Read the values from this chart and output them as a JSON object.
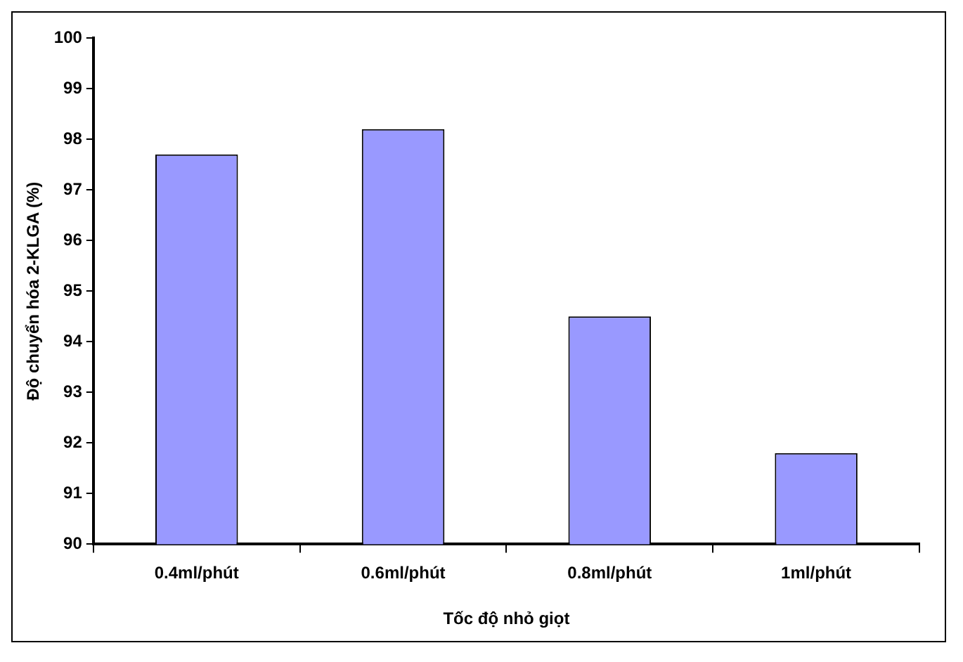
{
  "chart_data": {
    "type": "bar",
    "xlabel": "Tốc độ nhỏ giọt",
    "ylabel": "Độ chuyển hóa 2-KLGA (%)",
    "categories": [
      "0.4ml/phút",
      "0.6ml/phút",
      "0.8ml/phút",
      "1ml/phút"
    ],
    "values": [
      97.7,
      98.2,
      94.5,
      91.8
    ],
    "color": "#9999ff",
    "ylim": [
      90,
      100
    ],
    "yticks": [
      90,
      91,
      92,
      93,
      94,
      95,
      96,
      97,
      98,
      99,
      100
    ],
    "grid": false,
    "legend": false
  }
}
